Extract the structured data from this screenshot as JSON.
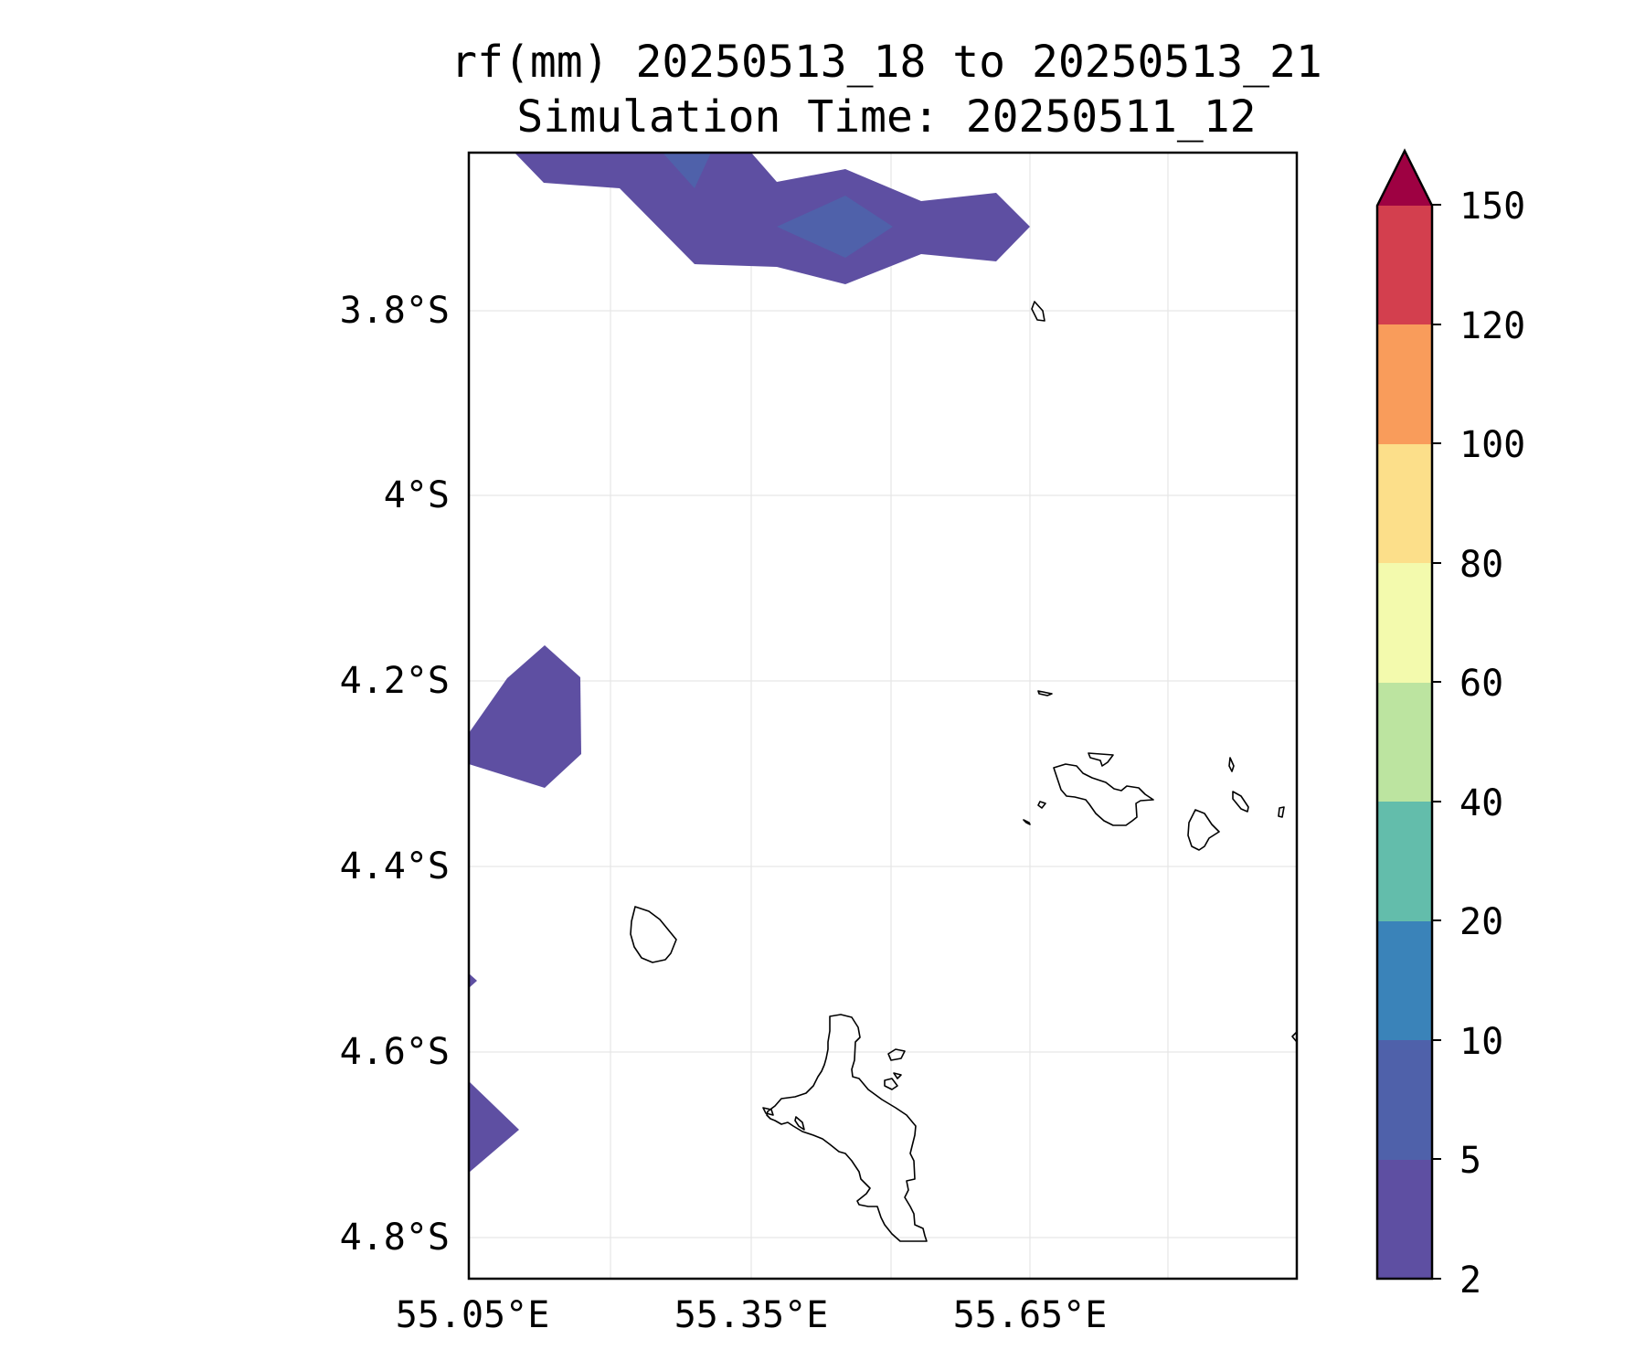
{
  "title": {
    "line1": "rf(mm) 20250513_18 to 20250513_21",
    "line2": "Simulation Time: 20250511_12"
  },
  "map": {
    "xticks": [
      "55.05°E",
      "55.35°E",
      "55.65°E"
    ],
    "yticks": [
      "3.8°S",
      "4°S",
      "4.2°S",
      "4.4°S",
      "4.6°S",
      "4.8°S"
    ],
    "grid": true,
    "coastline_color": "#000000"
  },
  "colorbar": {
    "ticks": [
      "2",
      "5",
      "10",
      "20",
      "40",
      "60",
      "80",
      "100",
      "120",
      "150"
    ],
    "colors": [
      "#5e4fa2",
      "#4f61aa",
      "#3a83b9",
      "#63bdab",
      "#bce4a0",
      "#f3faad",
      "#fcdf8a",
      "#f99c5b",
      "#d33f4e"
    ],
    "extend_color": "#9e0142",
    "extend": "max"
  }
}
